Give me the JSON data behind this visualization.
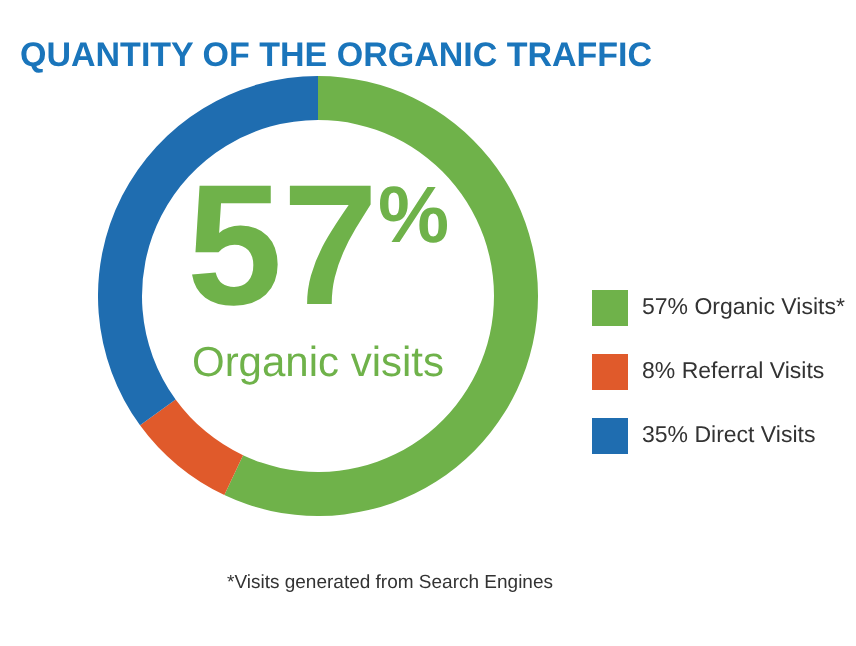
{
  "chart_data": {
    "type": "donut",
    "title": "QUANTITY OF THE ORGANIC TRAFFIC",
    "categories": [
      "57% Organic Visits*",
      "8% Referral Visits",
      "35% Direct Visits"
    ],
    "values": [
      57,
      8,
      35
    ],
    "colors": [
      "#6fb24a",
      "#e05a2b",
      "#1f6db0"
    ],
    "legend": "right",
    "annotations": [
      "57%",
      "Organic visits",
      "*Visits generated from Search Engines"
    ]
  }
}
